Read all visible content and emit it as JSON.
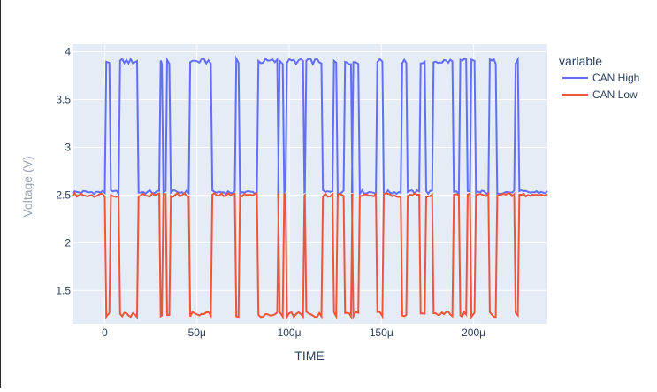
{
  "chart_data": {
    "type": "line",
    "title": "",
    "xlabel": "TIME",
    "ylabel": "Voltage (V)",
    "xlim": [
      -1.75e-05,
      0.00024
    ],
    "ylim": [
      1.15,
      4.08
    ],
    "grid": true,
    "legend_title": "variable",
    "legend_position": "right",
    "x_ticks": [
      {
        "value": 0,
        "label": "0"
      },
      {
        "value": 5e-05,
        "label": "50μ"
      },
      {
        "value": 0.0001,
        "label": "100μ"
      },
      {
        "value": 0.00015,
        "label": "150μ"
      },
      {
        "value": 0.0002,
        "label": "200μ"
      }
    ],
    "y_ticks": [
      {
        "value": 1.5,
        "label": "1.5"
      },
      {
        "value": 2,
        "label": "2"
      },
      {
        "value": 2.5,
        "label": "2.5"
      },
      {
        "value": 3,
        "label": "3"
      },
      {
        "value": 3.5,
        "label": "3.5"
      },
      {
        "value": 4,
        "label": "4"
      }
    ],
    "bit_edges": [
      -1.75e-05,
      0,
      2.5e-06,
      7.5e-06,
      1.75e-05,
      2.95e-05,
      3.1e-05,
      3.3e-05,
      3.5e-05,
      4.55e-05,
      5.75e-05,
      7.05e-05,
      7.25e-05,
      8.25e-05,
      9.35e-05,
      9.4e-05,
      9.65e-05,
      9.8e-05,
      0.0001075,
      0.0001085,
      0.0001175,
      0.0001235,
      0.0001255,
      0.0001295,
      0.0001335,
      0.000134,
      0.0001375,
      0.000147,
      0.0001505,
      0.0001605,
      0.0001635,
      0.0001705,
      0.0001735,
      0.0001775,
      0.0001885,
      0.000192,
      0.000196,
      0.000198,
      0.0002005,
      0.000208,
      0.000212,
      0.000222,
      0.000224,
      0.00024
    ],
    "bit_states": [
      0,
      1,
      0,
      1,
      0,
      1,
      0,
      1,
      0,
      1,
      0,
      1,
      0,
      1,
      0,
      1,
      0,
      1,
      0,
      1,
      0,
      1,
      0,
      1,
      0,
      1,
      0,
      1,
      0,
      1,
      0,
      1,
      0,
      1,
      0,
      1,
      0,
      1,
      0,
      1,
      0,
      1,
      0
    ],
    "series": [
      {
        "name": "CAN High",
        "color": "#636efa",
        "recessive_level": 2.53,
        "dominant_level": 3.9
      },
      {
        "name": "CAN Low",
        "color": "#ef553b",
        "recessive_level": 2.5,
        "dominant_level": 1.25
      }
    ]
  }
}
